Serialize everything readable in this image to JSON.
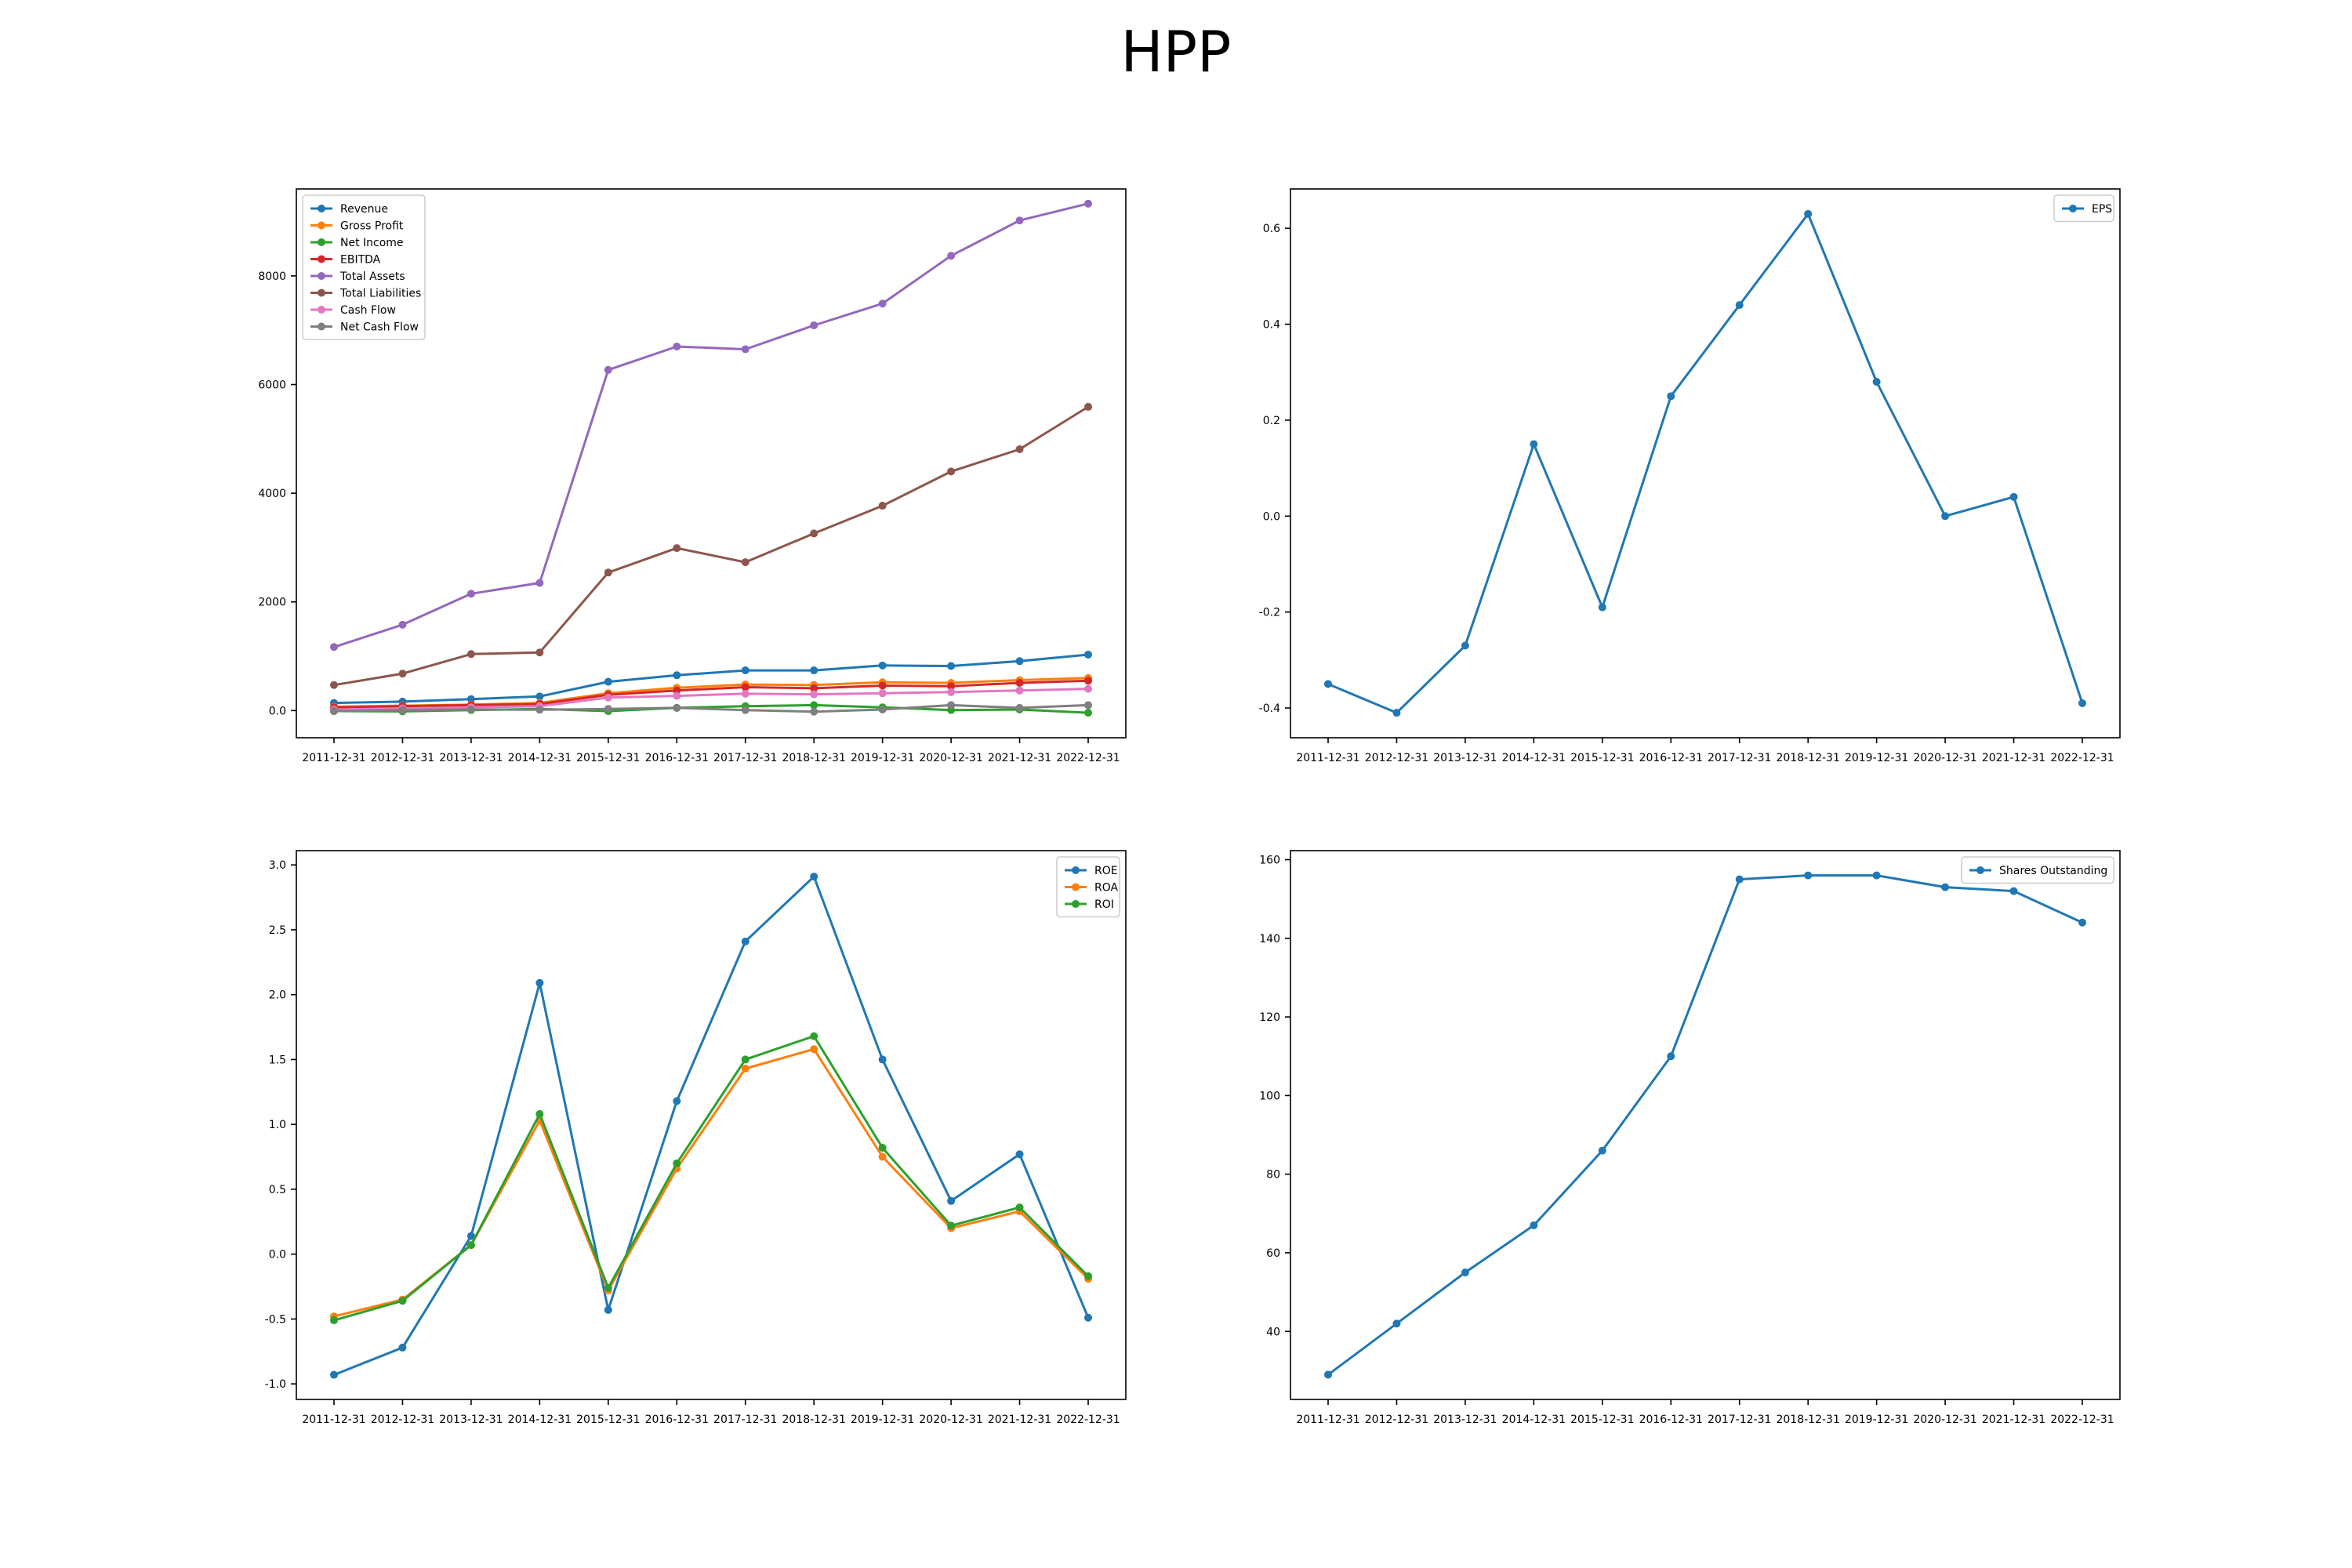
{
  "title": "HPP",
  "chart_data": [
    {
      "type": "line",
      "title": "",
      "xlabel": "",
      "ylabel": "",
      "categories": [
        "2011-12-31",
        "2012-12-31",
        "2013-12-31",
        "2014-12-31",
        "2015-12-31",
        "2016-12-31",
        "2017-12-31",
        "2018-12-31",
        "2019-12-31",
        "2020-12-31",
        "2021-12-31",
        "2022-12-31"
      ],
      "ylim": [
        -500,
        9600
      ],
      "yticks": [
        0,
        2000,
        4000,
        6000,
        8000
      ],
      "legend_position": "top-left",
      "series": [
        {
          "name": "Revenue",
          "color": "#1f77b4",
          "values": [
            140,
            165,
            210,
            260,
            530,
            650,
            740,
            740,
            830,
            820,
            910,
            1030
          ]
        },
        {
          "name": "Gross Profit",
          "color": "#ff7f0e",
          "values": [
            70,
            90,
            110,
            140,
            320,
            420,
            480,
            470,
            520,
            510,
            560,
            600
          ]
        },
        {
          "name": "Net Income",
          "color": "#2ca02c",
          "values": [
            -10,
            -15,
            10,
            30,
            -10,
            50,
            80,
            100,
            60,
            10,
            20,
            -40
          ]
        },
        {
          "name": "EBITDA",
          "color": "#d62728",
          "values": [
            60,
            80,
            100,
            120,
            290,
            370,
            430,
            410,
            460,
            450,
            510,
            550
          ]
        },
        {
          "name": "Total Assets",
          "color": "#9467bd",
          "values": [
            1170,
            1580,
            2150,
            2350,
            6270,
            6700,
            6650,
            7090,
            7490,
            8370,
            9020,
            9330
          ]
        },
        {
          "name": "Total Liabilities",
          "color": "#8c564b",
          "values": [
            470,
            680,
            1040,
            1070,
            2540,
            2990,
            2730,
            3260,
            3770,
            4400,
            4810,
            5590
          ]
        },
        {
          "name": "Cash Flow",
          "color": "#e377c2",
          "values": [
            20,
            40,
            60,
            80,
            240,
            270,
            310,
            300,
            320,
            340,
            370,
            400
          ]
        },
        {
          "name": "Net Cash Flow",
          "color": "#7f7f7f",
          "values": [
            -10,
            10,
            20,
            15,
            30,
            50,
            10,
            -20,
            20,
            100,
            50,
            100
          ]
        }
      ]
    },
    {
      "type": "line",
      "title": "",
      "xlabel": "",
      "ylabel": "",
      "categories": [
        "2011-12-31",
        "2012-12-31",
        "2013-12-31",
        "2014-12-31",
        "2015-12-31",
        "2016-12-31",
        "2017-12-31",
        "2018-12-31",
        "2019-12-31",
        "2020-12-31",
        "2021-12-31",
        "2022-12-31"
      ],
      "ylim": [
        -0.462,
        0.682
      ],
      "yticks": [
        -0.4,
        -0.2,
        0.0,
        0.2,
        0.4,
        0.6
      ],
      "legend_position": "top-right",
      "series": [
        {
          "name": "EPS",
          "color": "#1f77b4",
          "values": [
            -0.35,
            -0.41,
            -0.27,
            0.15,
            -0.19,
            0.25,
            0.44,
            0.63,
            0.28,
            0.0,
            0.04,
            -0.39
          ]
        }
      ]
    },
    {
      "type": "line",
      "title": "",
      "xlabel": "",
      "ylabel": "",
      "categories": [
        "2011-12-31",
        "2012-12-31",
        "2013-12-31",
        "2014-12-31",
        "2015-12-31",
        "2016-12-31",
        "2017-12-31",
        "2018-12-31",
        "2019-12-31",
        "2020-12-31",
        "2021-12-31",
        "2022-12-31"
      ],
      "ylim": [
        -1.12,
        3.11
      ],
      "yticks": [
        -1.0,
        -0.5,
        0.0,
        0.5,
        1.0,
        1.5,
        2.0,
        2.5,
        3.0
      ],
      "legend_position": "top-right",
      "series": [
        {
          "name": "ROE",
          "color": "#1f77b4",
          "values": [
            -0.93,
            -0.72,
            0.14,
            2.09,
            -0.43,
            1.18,
            2.41,
            2.91,
            1.5,
            0.41,
            0.77,
            -0.49
          ]
        },
        {
          "name": "ROA",
          "color": "#ff7f0e",
          "values": [
            -0.48,
            -0.35,
            0.07,
            1.03,
            -0.28,
            0.66,
            1.43,
            1.58,
            0.75,
            0.2,
            0.33,
            -0.19
          ]
        },
        {
          "name": "ROI",
          "color": "#2ca02c",
          "values": [
            -0.51,
            -0.36,
            0.07,
            1.08,
            -0.26,
            0.7,
            1.5,
            1.68,
            0.82,
            0.22,
            0.36,
            -0.17
          ]
        }
      ]
    },
    {
      "type": "line",
      "title": "",
      "xlabel": "",
      "ylabel": "",
      "categories": [
        "2011-12-31",
        "2012-12-31",
        "2013-12-31",
        "2014-12-31",
        "2015-12-31",
        "2016-12-31",
        "2017-12-31",
        "2018-12-31",
        "2019-12-31",
        "2020-12-31",
        "2021-12-31",
        "2022-12-31"
      ],
      "ylim": [
        22.7,
        162.3
      ],
      "yticks": [
        40,
        60,
        80,
        100,
        120,
        140,
        160
      ],
      "legend_position": "top-right",
      "series": [
        {
          "name": "Shares Outstanding",
          "color": "#1f77b4",
          "values": [
            29,
            42,
            55,
            67,
            86,
            110,
            155,
            156,
            156,
            153,
            152,
            144
          ]
        }
      ]
    }
  ]
}
